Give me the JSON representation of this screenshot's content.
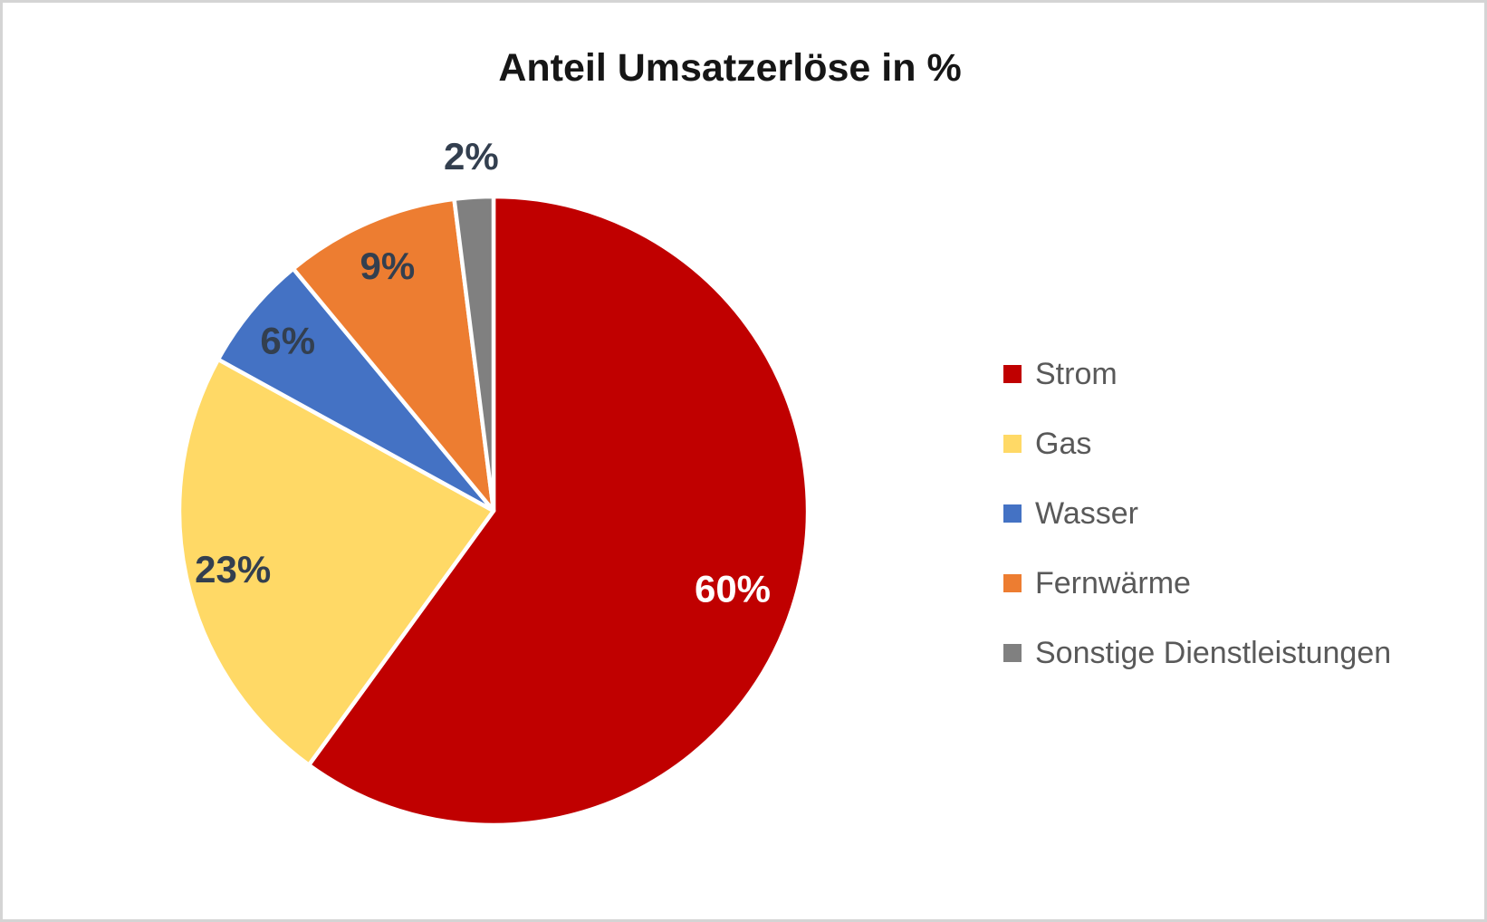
{
  "chart_data": {
    "type": "pie",
    "title": "Anteil Umsatzerlöse in %",
    "unit": "%",
    "start_angle_deg": 0,
    "direction": "clockwise",
    "legend_position": "right",
    "background_color": "#FFFFFF",
    "border_color": "#D4D4D4",
    "title_color": "#161616",
    "legend_text_color": "#595959",
    "slice_gap_color": "#FFFFFF",
    "slices": [
      {
        "label": "Strom",
        "value": 60,
        "data_label": "60%",
        "color": "#C00000",
        "label_color": "#FFFFFF",
        "label_placement": "inside"
      },
      {
        "label": "Gas",
        "value": 23,
        "data_label": "23%",
        "color": "#FFD966",
        "label_color": "#333F4F",
        "label_placement": "inside"
      },
      {
        "label": "Wasser",
        "value": 6,
        "data_label": "6%",
        "color": "#4472C4",
        "label_color": "#333F4F",
        "label_placement": "inside"
      },
      {
        "label": "Fernwärme",
        "value": 9,
        "data_label": "9%",
        "color": "#ED7D31",
        "label_color": "#333F4F",
        "label_placement": "inside"
      },
      {
        "label": "Sonstige Dienstleistungen",
        "value": 2,
        "data_label": "2%",
        "color": "#808080",
        "label_color": "#333F4F",
        "label_placement": "outside"
      }
    ]
  }
}
